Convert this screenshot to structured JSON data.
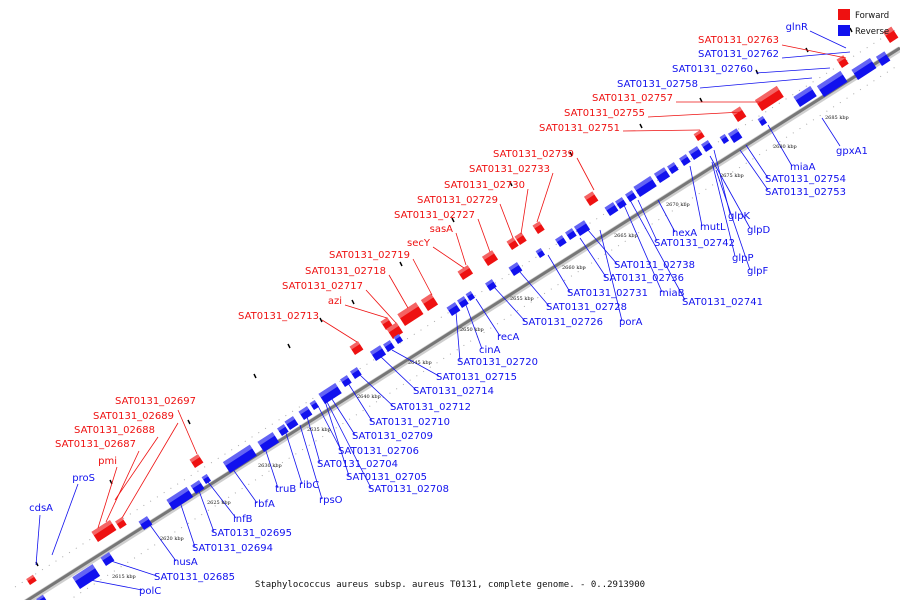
{
  "caption": "Staphylococcus aureus subsp. aureus T0131, complete genome. - 0..2913900",
  "legend": [
    {
      "label": "Forward",
      "color": "#ee1111"
    },
    {
      "label": "Reverse",
      "color": "#1111ee"
    }
  ],
  "colors": {
    "forward": "#ee1111",
    "reverse": "#1111ee",
    "backbone": "#777777"
  },
  "ticks": [
    "2615 kbp",
    "2620 kbp",
    "2625 kbp",
    "2630 kbp",
    "2635 kbp",
    "2640 kbp",
    "2645 kbp",
    "2650 kbp",
    "2655 kbp",
    "2660 kbp",
    "2665 kbp",
    "2670 kbp",
    "2675 kbp",
    "2680 kbp",
    "2685 kbp"
  ],
  "forward_labels": [
    "SAT0131_02763",
    "SAT0131_02757",
    "SAT0131_02755",
    "SAT0131_02751",
    "SAT0131_02739",
    "SAT0131_02733",
    "SAT0131_02730",
    "SAT0131_02729",
    "SAT0131_02727",
    "sasA",
    "secY",
    "SAT0131_02719",
    "SAT0131_02718",
    "SAT0131_02717",
    "azi",
    "SAT0131_02713",
    "SAT0131_02697",
    "SAT0131_02689",
    "SAT0131_02688",
    "SAT0131_02687",
    "pmi"
  ],
  "reverse_upper_labels": [
    "glnR",
    "SAT0131_02762",
    "SAT0131_02760",
    "SAT0131_02758",
    "proS",
    "cdsA"
  ],
  "reverse_lower_labels": [
    "gpxA1",
    "miaA",
    "SAT0131_02754",
    "SAT0131_02753",
    "glpK",
    "glpD",
    "mutL",
    "hexA",
    "SAT0131_02742",
    "glpP",
    "glpF",
    "SAT0131_02738",
    "SAT0131_02736",
    "miaB",
    "SAT0131_02741",
    "SAT0131_02731",
    "SAT0131_02728",
    "SAT0131_02726",
    "porA",
    "recA",
    "cinA",
    "SAT0131_02720",
    "SAT0131_02715",
    "SAT0131_02714",
    "SAT0131_02712",
    "SAT0131_02710",
    "SAT0131_02709",
    "SAT0131_02706",
    "SAT0131_02704",
    "SAT0131_02705",
    "SAT0131_02708",
    "rpsO",
    "ribC",
    "truB",
    "rbfA",
    "infB",
    "SAT0131_02695",
    "SAT0131_02694",
    "nusA",
    "SAT0131_02685",
    "polC"
  ]
}
